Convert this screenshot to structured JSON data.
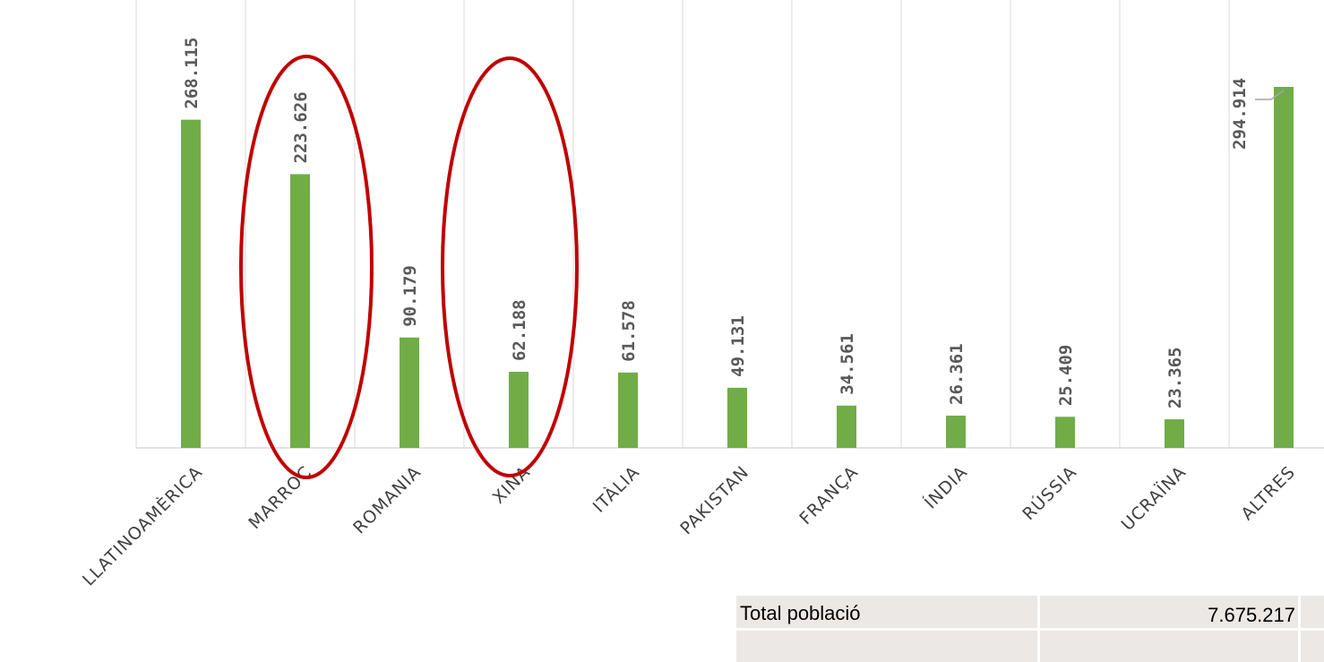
{
  "chart_data": {
    "type": "bar",
    "categories": [
      "LLATINOAMÈRICA",
      "MARROC",
      "ROMANIA",
      "XINA",
      "ITÀLIA",
      "PAKISTAN",
      "FRANÇA",
      "ÍNDIA",
      "RÚSSIA",
      "UCRAÏNA",
      "ALTRES"
    ],
    "values": [
      268115,
      223626,
      90179,
      62188,
      61578,
      49131,
      34561,
      26361,
      25409,
      23365,
      294914
    ],
    "value_labels": [
      "268.115",
      "223.626",
      "90.179",
      "62.188",
      "61.578",
      "49.131",
      "34.561",
      "26.361",
      "25.409",
      "23.365",
      "294.914"
    ],
    "color": "#70ad47"
  },
  "table": {
    "rows": [
      [
        "Total població",
        "7.675.217"
      ]
    ]
  }
}
